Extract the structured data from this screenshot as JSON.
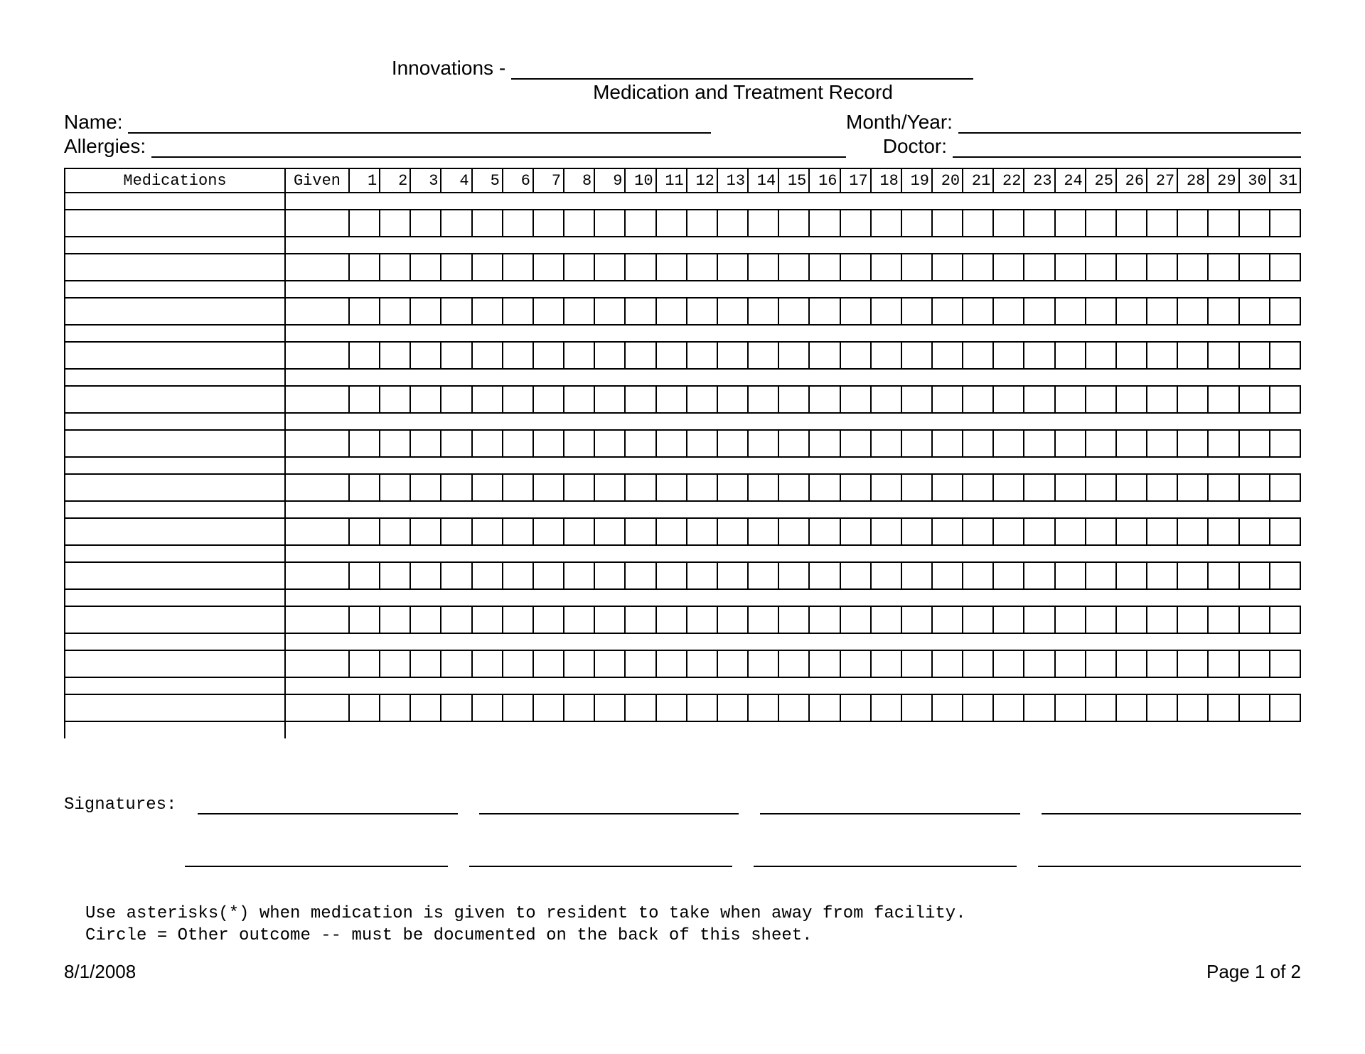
{
  "header": {
    "innovations_label": "Innovations - ",
    "subtitle": "Medication and Treatment Record"
  },
  "fields": {
    "name_label": "Name:",
    "allergies_label": "Allergies:",
    "month_year_label": "Month/Year:",
    "doctor_label": "Doctor:"
  },
  "table": {
    "col_medications": "Medications",
    "col_given": "Given",
    "days": [
      "1",
      "2",
      "3",
      "4",
      "5",
      "6",
      "7",
      "8",
      "9",
      "10",
      "11",
      "12",
      "13",
      "14",
      "15",
      "16",
      "17",
      "18",
      "19",
      "20",
      "21",
      "22",
      "23",
      "24",
      "25",
      "26",
      "27",
      "28",
      "29",
      "30",
      "31"
    ],
    "num_rows": 12
  },
  "signatures": {
    "label": "Signatures:"
  },
  "notes": {
    "line1": "Use asterisks(*) when medication is given to resident to take when away from facility.",
    "line2": "Circle = Other outcome -- must be documented on the back of this sheet."
  },
  "footer": {
    "date": "8/1/2008",
    "page": "Page 1 of 2"
  },
  "style": {
    "font_mono": "Courier New",
    "font_sans": "Arial",
    "border_color": "#000000",
    "background_color": "#ffffff",
    "text_color": "#000000"
  }
}
